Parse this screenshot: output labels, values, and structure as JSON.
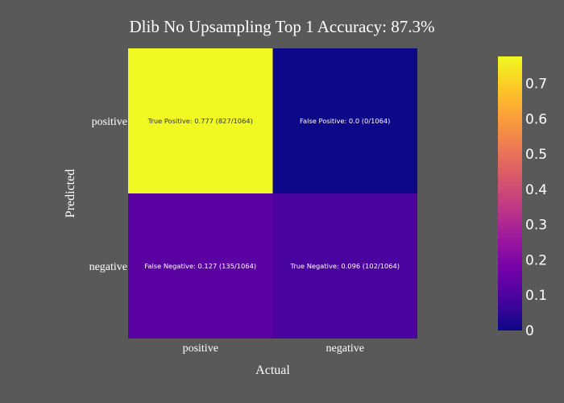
{
  "chart_data": {
    "type": "heatmap",
    "title": "Dlib No Upsampling Top 1 Accuracy: 87.3%",
    "xlabel": "Actual",
    "ylabel": "Predicted",
    "x_categories": [
      "positive",
      "negative"
    ],
    "y_categories": [
      "positive",
      "negative"
    ],
    "cells": [
      {
        "x": "positive",
        "y": "positive",
        "value": 0.777,
        "label": "True Positive: 0.777 (827/1064)"
      },
      {
        "x": "negative",
        "y": "positive",
        "value": 0.0,
        "label": "False Positive: 0.0 (0/1064)"
      },
      {
        "x": "positive",
        "y": "negative",
        "value": 0.127,
        "label": "False Negative: 0.127 (135/1064)"
      },
      {
        "x": "negative",
        "y": "negative",
        "value": 0.096,
        "label": "True Negative: 0.096 (102/1064)"
      }
    ],
    "colorscale": "Plasma",
    "zlim": [
      0,
      0.777
    ],
    "colorbar_ticks": [
      "0",
      "0.1",
      "0.2",
      "0.3",
      "0.4",
      "0.5",
      "0.6",
      "0.7"
    ],
    "colors": {
      "background": "#595959",
      "plasma": [
        "#0d0887",
        "#46039f",
        "#7201a8",
        "#9c179e",
        "#bd3786",
        "#d8576b",
        "#ed7953",
        "#fb9f3a",
        "#fdca26",
        "#f0f921"
      ]
    }
  }
}
